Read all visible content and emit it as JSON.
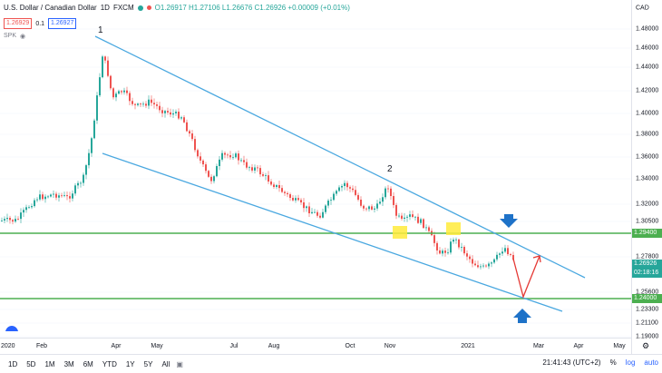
{
  "legend": {
    "symbol": "U.S. Dollar / Canadian Dollar",
    "interval": "1D",
    "exchange": "FXCM",
    "ohlc": "O1.26917  H1.27106  L1.26676  C1.26926  +0.00009 (+0.01%)"
  },
  "prices": {
    "bid": "1.26929",
    "spread": "0.1",
    "ask": "1.26927"
  },
  "indicator": "SPK",
  "axis": {
    "corner": "CAD",
    "y_ticks": [
      "1.48000",
      "1.46000",
      "1.44000",
      "1.42000",
      "1.40000",
      "1.38000",
      "1.36000",
      "1.34000",
      "1.32000",
      "1.30500",
      "1.27800",
      "1.25600",
      "1.23300",
      "1.21100",
      "1.19000"
    ],
    "x_ticks": [
      "2020",
      "Feb",
      "Apr",
      "May",
      "Jul",
      "Aug",
      "Oct",
      "Nov",
      "2021",
      "Mar",
      "Apr",
      "May"
    ],
    "tag_upper": "1.29400",
    "tag_price": "1.26926",
    "tag_timer": "02:18:16",
    "tag_lower": "1.24000"
  },
  "annotations": {
    "wave_1": "1",
    "wave_2": "2"
  },
  "bottom": {
    "timeframes": [
      "1D",
      "5D",
      "1M",
      "3M",
      "6M",
      "YTD",
      "1Y",
      "5Y",
      "All"
    ],
    "clock": "21:41:43 (UTC+2)",
    "percent": "%",
    "log": "log",
    "auto": "auto"
  },
  "colors": {
    "up": "#26a69a",
    "down": "#ef5350",
    "channel": "#4aa8e0",
    "level": "#4caf50",
    "arrow_blue": "#1e72c8",
    "arrow_red": "#e53935",
    "highlight": "#ffeb3b"
  }
}
